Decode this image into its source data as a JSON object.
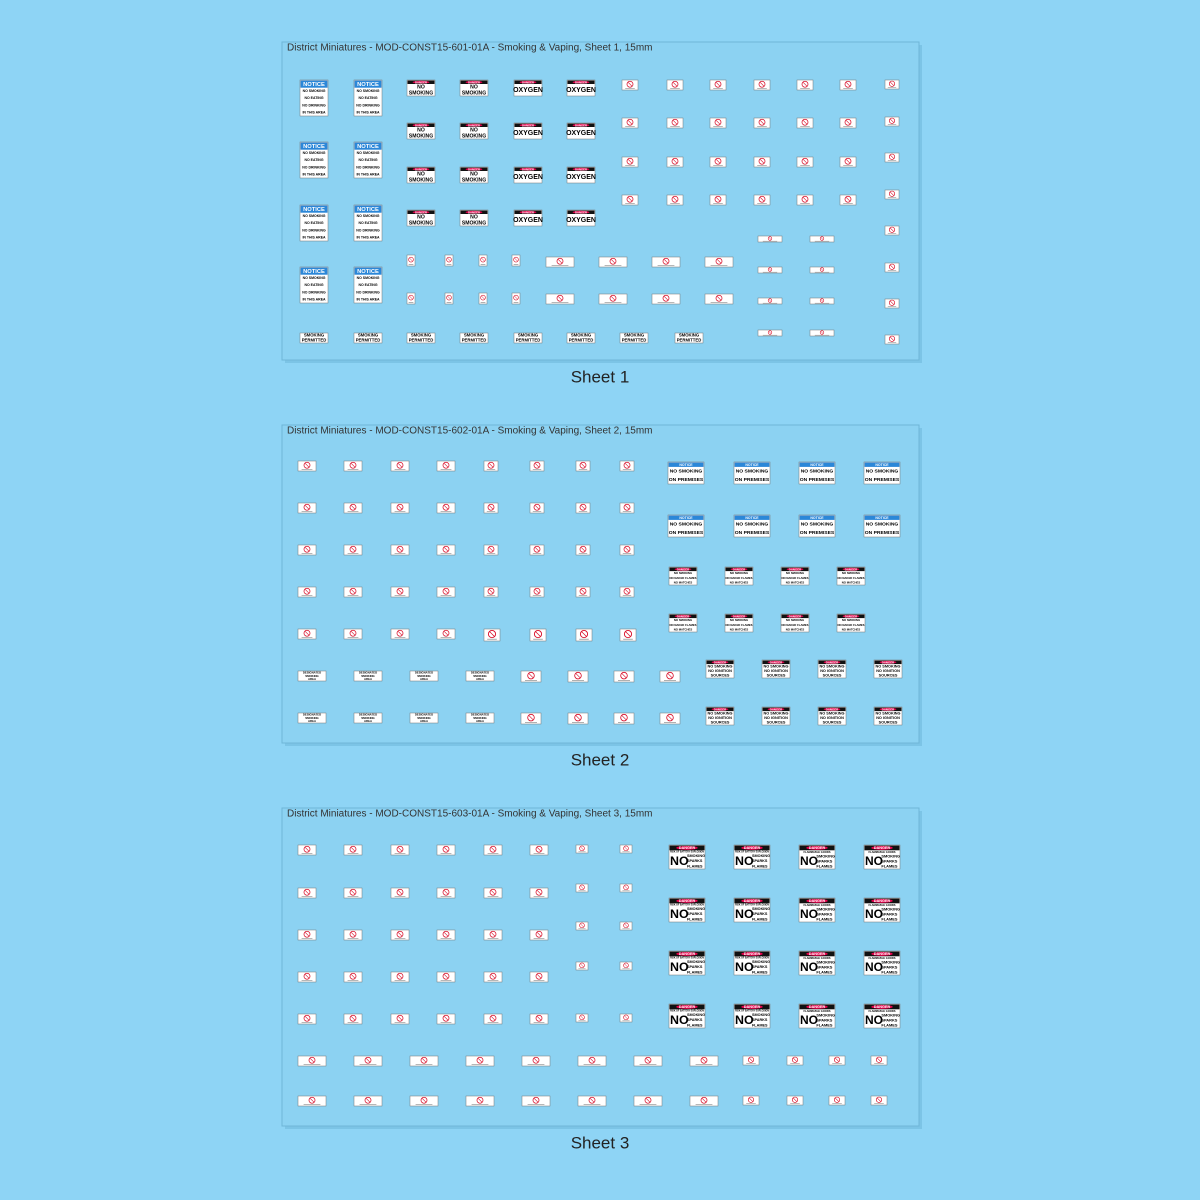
{
  "sheets": [
    {
      "title": "District Miniatures - MOD-CONST15-601-01A - Smoking & Vaping, Sheet 1, 15mm",
      "caption": "Sheet 1"
    },
    {
      "title": "District Miniatures - MOD-CONST15-602-01A - Smoking & Vaping, Sheet 2, 15mm",
      "caption": "Sheet 2"
    },
    {
      "title": "District Miniatures - MOD-CONST15-603-01A - Smoking & Vaping, Sheet 3, 15mm",
      "caption": "Sheet 3"
    }
  ],
  "signs": {
    "notice4": {
      "header": "NOTICE",
      "header_color": "#2b87d8",
      "lines": [
        "NO SMOKING",
        "NO EATING",
        "NO DRINKING",
        "IN THIS AREA"
      ]
    },
    "danger_smoking": {
      "header": "DANGER",
      "header_color": "#111111",
      "oval_color": "#e8004c",
      "lines": [
        "NO",
        "SMOKING"
      ]
    },
    "danger_oxygen": {
      "header": "DANGER",
      "header_color": "#111111",
      "oval_color": "#e8004c",
      "lines": [
        "OXYGEN"
      ]
    },
    "smoking_permitted": {
      "lines": [
        "SMOKING",
        "PERMITTED"
      ]
    },
    "designated": {
      "lines": [
        "DESIGNATED",
        "SMOKING",
        "AREA"
      ]
    },
    "notice_premises": {
      "header": "NOTICE",
      "header_color": "#2b87d8",
      "lines": [
        "NO SMOKING",
        "ON PREMISES"
      ]
    },
    "danger_flames": {
      "header": "DANGER",
      "header_color": "#111111",
      "oval_color": "#e8004c",
      "lines": [
        "NO SMOKING",
        "NO NAKED FLAMES",
        "NO MATCHES"
      ]
    },
    "danger_ignition": {
      "header": "DANGER",
      "header_color": "#111111",
      "oval_color": "#e8004c",
      "lines": [
        "NO SMOKING",
        "NO IGNITION",
        "SOURCES"
      ]
    },
    "danger_battery": {
      "header": "DANGER",
      "header_color": "#111111",
      "oval_color": "#e8004c",
      "sub": "RISK OF BATTERY EXPLOSION",
      "big": "NO",
      "lines": [
        "SMOKING",
        "SPARKS",
        "FLAMES"
      ]
    },
    "danger_flammable": {
      "header": "DANGER",
      "header_color": "#111111",
      "oval_color": "#e8004c",
      "sub": "FLAMMABLE GOODS",
      "big": "NO",
      "lines": [
        "SMOKING",
        "SPARKS",
        "FLAMES"
      ]
    }
  }
}
